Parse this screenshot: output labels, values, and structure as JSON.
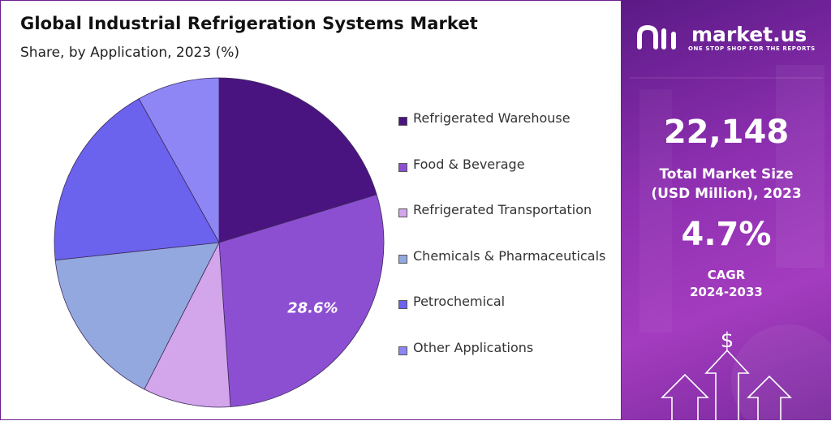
{
  "title": "Global Industrial Refrigeration Systems Market",
  "subtitle": "Share, by Application, 2023 (%)",
  "chart_data": {
    "type": "pie",
    "title": "Global Industrial Refrigeration Systems Market",
    "subtitle": "Share, by Application, 2023 (%)",
    "categories": [
      "Refrigerated Warehouse",
      "Food & Beverage",
      "Refrigerated Transportation",
      "Chemicals & Pharmaceuticals",
      "Petrochemical",
      "Other Applications"
    ],
    "values": [
      20.3,
      28.6,
      8.6,
      15.8,
      18.6,
      8.1
    ],
    "colors": [
      "#4a1480",
      "#8d4fd2",
      "#d3a6ec",
      "#93a8de",
      "#6b63ee",
      "#8f86f5"
    ],
    "data_labels": [
      {
        "index": 1,
        "text": "28.6%"
      }
    ],
    "legend_position": "right"
  },
  "side_panel": {
    "brand_name": "market.us",
    "brand_tagline": "ONE STOP SHOP FOR THE REPORTS",
    "market_size_value": "22,148",
    "market_size_label_1": "Total Market Size",
    "market_size_label_2": "(USD Million), 2023",
    "cagr_value": "4.7%",
    "cagr_label": "CAGR",
    "cagr_years": "2024-2033",
    "background_color": "#8d2fb0"
  }
}
